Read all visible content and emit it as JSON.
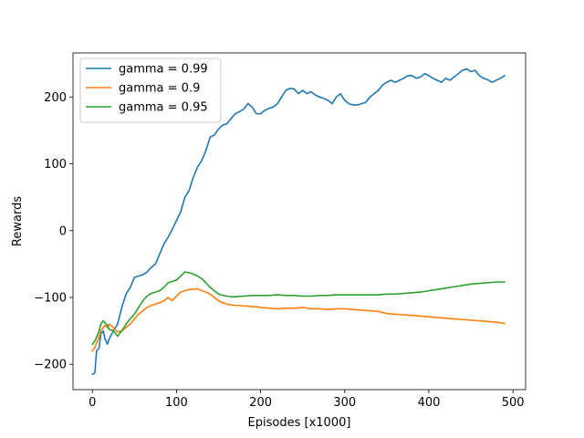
{
  "chart_data": {
    "type": "line",
    "title": "",
    "xlabel": "Episodes [x1000]",
    "ylabel": "Rewards",
    "xlim": [
      -23,
      515
    ],
    "ylim": [
      -238,
      266
    ],
    "xticks": [
      0,
      100,
      200,
      300,
      400,
      500
    ],
    "yticks": [
      -200,
      -100,
      0,
      100,
      200
    ],
    "grid": false,
    "legend_position": "upper-left",
    "series": [
      {
        "name": "gamma = 0.99",
        "color": "#1f77b4",
        "points": [
          [
            0,
            -215
          ],
          [
            3,
            -213
          ],
          [
            5,
            -180
          ],
          [
            8,
            -176
          ],
          [
            10,
            -155
          ],
          [
            13,
            -150
          ],
          [
            15,
            -162
          ],
          [
            18,
            -170
          ],
          [
            20,
            -162
          ],
          [
            25,
            -150
          ],
          [
            30,
            -140
          ],
          [
            35,
            -115
          ],
          [
            40,
            -95
          ],
          [
            45,
            -85
          ],
          [
            50,
            -70
          ],
          [
            55,
            -68
          ],
          [
            60,
            -66
          ],
          [
            65,
            -62
          ],
          [
            70,
            -55
          ],
          [
            75,
            -50
          ],
          [
            80,
            -35
          ],
          [
            85,
            -20
          ],
          [
            90,
            -10
          ],
          [
            95,
            2
          ],
          [
            100,
            15
          ],
          [
            105,
            28
          ],
          [
            110,
            50
          ],
          [
            115,
            60
          ],
          [
            120,
            80
          ],
          [
            125,
            95
          ],
          [
            130,
            105
          ],
          [
            135,
            120
          ],
          [
            140,
            140
          ],
          [
            145,
            143
          ],
          [
            150,
            152
          ],
          [
            155,
            158
          ],
          [
            160,
            160
          ],
          [
            165,
            168
          ],
          [
            170,
            175
          ],
          [
            175,
            178
          ],
          [
            180,
            182
          ],
          [
            185,
            190
          ],
          [
            190,
            185
          ],
          [
            195,
            175
          ],
          [
            200,
            175
          ],
          [
            205,
            180
          ],
          [
            210,
            183
          ],
          [
            215,
            185
          ],
          [
            220,
            190
          ],
          [
            225,
            200
          ],
          [
            230,
            210
          ],
          [
            235,
            213
          ],
          [
            240,
            212
          ],
          [
            245,
            205
          ],
          [
            250,
            210
          ],
          [
            255,
            205
          ],
          [
            260,
            208
          ],
          [
            265,
            203
          ],
          [
            270,
            200
          ],
          [
            275,
            198
          ],
          [
            280,
            195
          ],
          [
            285,
            190
          ],
          [
            290,
            200
          ],
          [
            295,
            205
          ],
          [
            300,
            195
          ],
          [
            305,
            190
          ],
          [
            310,
            188
          ],
          [
            315,
            188
          ],
          [
            320,
            190
          ],
          [
            325,
            192
          ],
          [
            330,
            200
          ],
          [
            335,
            205
          ],
          [
            340,
            210
          ],
          [
            345,
            218
          ],
          [
            350,
            222
          ],
          [
            355,
            225
          ],
          [
            360,
            222
          ],
          [
            365,
            225
          ],
          [
            370,
            228
          ],
          [
            375,
            232
          ],
          [
            380,
            232
          ],
          [
            385,
            228
          ],
          [
            390,
            230
          ],
          [
            395,
            235
          ],
          [
            400,
            232
          ],
          [
            405,
            228
          ],
          [
            410,
            225
          ],
          [
            415,
            222
          ],
          [
            420,
            228
          ],
          [
            425,
            225
          ],
          [
            430,
            230
          ],
          [
            435,
            235
          ],
          [
            440,
            240
          ],
          [
            445,
            242
          ],
          [
            450,
            238
          ],
          [
            455,
            240
          ],
          [
            460,
            232
          ],
          [
            465,
            228
          ],
          [
            470,
            226
          ],
          [
            475,
            222
          ],
          [
            480,
            225
          ],
          [
            485,
            228
          ],
          [
            490,
            232
          ]
        ]
      },
      {
        "name": "gamma = 0.9",
        "color": "#ff7f0e",
        "points": [
          [
            0,
            -180
          ],
          [
            3,
            -175
          ],
          [
            5,
            -168
          ],
          [
            8,
            -160
          ],
          [
            10,
            -150
          ],
          [
            13,
            -145
          ],
          [
            15,
            -142
          ],
          [
            18,
            -145
          ],
          [
            20,
            -140
          ],
          [
            25,
            -145
          ],
          [
            30,
            -152
          ],
          [
            35,
            -150
          ],
          [
            40,
            -145
          ],
          [
            45,
            -140
          ],
          [
            50,
            -132
          ],
          [
            55,
            -125
          ],
          [
            60,
            -120
          ],
          [
            65,
            -115
          ],
          [
            70,
            -112
          ],
          [
            75,
            -110
          ],
          [
            80,
            -108
          ],
          [
            85,
            -105
          ],
          [
            90,
            -100
          ],
          [
            95,
            -105
          ],
          [
            100,
            -98
          ],
          [
            105,
            -92
          ],
          [
            110,
            -90
          ],
          [
            115,
            -88
          ],
          [
            120,
            -88
          ],
          [
            125,
            -87
          ],
          [
            130,
            -90
          ],
          [
            135,
            -92
          ],
          [
            140,
            -95
          ],
          [
            145,
            -100
          ],
          [
            150,
            -105
          ],
          [
            155,
            -108
          ],
          [
            160,
            -110
          ],
          [
            165,
            -111
          ],
          [
            170,
            -112
          ],
          [
            175,
            -112
          ],
          [
            180,
            -113
          ],
          [
            185,
            -113
          ],
          [
            190,
            -114
          ],
          [
            195,
            -114
          ],
          [
            200,
            -115
          ],
          [
            210,
            -116
          ],
          [
            220,
            -117
          ],
          [
            230,
            -116
          ],
          [
            240,
            -116
          ],
          [
            250,
            -115
          ],
          [
            260,
            -117
          ],
          [
            270,
            -117
          ],
          [
            280,
            -118
          ],
          [
            290,
            -117
          ],
          [
            300,
            -117
          ],
          [
            310,
            -118
          ],
          [
            320,
            -119
          ],
          [
            330,
            -120
          ],
          [
            340,
            -121
          ],
          [
            350,
            -124
          ],
          [
            360,
            -125
          ],
          [
            370,
            -126
          ],
          [
            380,
            -127
          ],
          [
            390,
            -128
          ],
          [
            400,
            -129
          ],
          [
            410,
            -130
          ],
          [
            420,
            -131
          ],
          [
            430,
            -132
          ],
          [
            440,
            -133
          ],
          [
            450,
            -134
          ],
          [
            460,
            -135
          ],
          [
            470,
            -136
          ],
          [
            480,
            -137
          ],
          [
            490,
            -139
          ]
        ]
      },
      {
        "name": "gamma = 0.95",
        "color": "#2ca02c",
        "points": [
          [
            0,
            -170
          ],
          [
            3,
            -165
          ],
          [
            5,
            -160
          ],
          [
            8,
            -150
          ],
          [
            10,
            -140
          ],
          [
            13,
            -135
          ],
          [
            15,
            -138
          ],
          [
            18,
            -142
          ],
          [
            20,
            -148
          ],
          [
            25,
            -150
          ],
          [
            30,
            -158
          ],
          [
            35,
            -150
          ],
          [
            40,
            -140
          ],
          [
            45,
            -132
          ],
          [
            50,
            -125
          ],
          [
            55,
            -115
          ],
          [
            60,
            -105
          ],
          [
            65,
            -98
          ],
          [
            70,
            -94
          ],
          [
            75,
            -92
          ],
          [
            80,
            -90
          ],
          [
            85,
            -85
          ],
          [
            90,
            -78
          ],
          [
            95,
            -76
          ],
          [
            100,
            -74
          ],
          [
            105,
            -68
          ],
          [
            110,
            -62
          ],
          [
            115,
            -63
          ],
          [
            120,
            -65
          ],
          [
            125,
            -68
          ],
          [
            130,
            -72
          ],
          [
            135,
            -78
          ],
          [
            140,
            -85
          ],
          [
            145,
            -90
          ],
          [
            150,
            -95
          ],
          [
            155,
            -97
          ],
          [
            160,
            -98
          ],
          [
            165,
            -99
          ],
          [
            170,
            -99
          ],
          [
            180,
            -98
          ],
          [
            190,
            -97
          ],
          [
            200,
            -97
          ],
          [
            210,
            -97
          ],
          [
            220,
            -96
          ],
          [
            230,
            -97
          ],
          [
            240,
            -97
          ],
          [
            250,
            -98
          ],
          [
            260,
            -98
          ],
          [
            270,
            -97
          ],
          [
            280,
            -97
          ],
          [
            290,
            -96
          ],
          [
            300,
            -96
          ],
          [
            310,
            -96
          ],
          [
            320,
            -96
          ],
          [
            330,
            -96
          ],
          [
            340,
            -96
          ],
          [
            350,
            -95
          ],
          [
            360,
            -95
          ],
          [
            370,
            -94
          ],
          [
            380,
            -93
          ],
          [
            390,
            -92
          ],
          [
            400,
            -90
          ],
          [
            410,
            -88
          ],
          [
            420,
            -86
          ],
          [
            430,
            -84
          ],
          [
            440,
            -82
          ],
          [
            450,
            -80
          ],
          [
            460,
            -79
          ],
          [
            470,
            -78
          ],
          [
            480,
            -77
          ],
          [
            490,
            -77
          ]
        ]
      }
    ]
  }
}
